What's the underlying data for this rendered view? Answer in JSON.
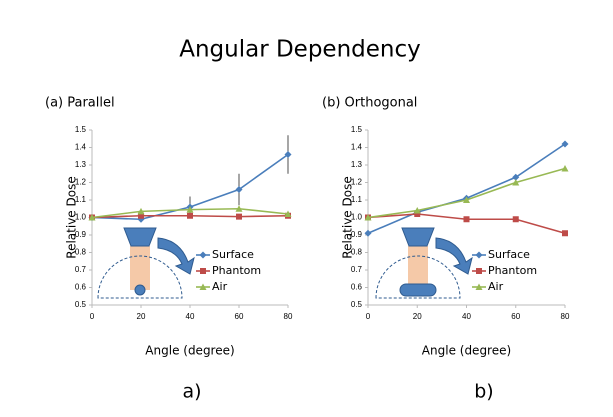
{
  "title": "Angular Dependency",
  "chart_data": [
    {
      "type": "line",
      "title": "(a) Parallel",
      "caption": "a)",
      "xlabel": "Angle (degree)",
      "ylabel": "Relative Dose",
      "x": [
        0,
        20,
        40,
        60,
        80
      ],
      "xlim": [
        0,
        80
      ],
      "xticks": [
        0,
        20,
        40,
        60,
        80
      ],
      "ylim": [
        0.5,
        1.5
      ],
      "yticks": [
        0.5,
        0.6,
        0.7,
        0.8,
        0.9,
        {
          "value": 1.0,
          "label": "1.0"
        },
        1.1,
        1.2,
        1.3,
        1.4,
        1.5
      ],
      "series": [
        {
          "name": "Surface",
          "color": "#4a7ebb",
          "marker": "diamond",
          "values": [
            1.0,
            0.99,
            1.06,
            1.16,
            1.36
          ],
          "errors": [
            0,
            0.01,
            0.06,
            0.09,
            0.11
          ]
        },
        {
          "name": "Phantom",
          "color": "#be4b48",
          "marker": "square",
          "values": [
            1.0,
            1.01,
            1.01,
            1.005,
            1.01
          ]
        },
        {
          "name": "Air",
          "color": "#98b954",
          "marker": "triangle",
          "values": [
            1.0,
            1.035,
            1.045,
            1.05,
            1.02
          ]
        }
      ]
    },
    {
      "type": "line",
      "title": "(b) Orthogonal",
      "caption": "b)",
      "xlabel": "Angle (degree)",
      "ylabel": "Relative Dose",
      "x": [
        0,
        20,
        40,
        60,
        80
      ],
      "xlim": [
        0,
        80
      ],
      "xticks": [
        0,
        20,
        40,
        60,
        80
      ],
      "ylim": [
        0.5,
        1.5
      ],
      "yticks": [
        0.5,
        0.6,
        0.7,
        0.8,
        0.9,
        {
          "value": 1.0,
          "label": "1.0"
        },
        1.1,
        1.2,
        1.3,
        1.4,
        1.5
      ],
      "series": [
        {
          "name": "Surface",
          "color": "#4a7ebb",
          "marker": "diamond",
          "values": [
            0.91,
            1.03,
            1.11,
            1.23,
            1.42
          ]
        },
        {
          "name": "Phantom",
          "color": "#be4b48",
          "marker": "square",
          "values": [
            1.0,
            1.02,
            0.99,
            0.99,
            0.91
          ]
        },
        {
          "name": "Air",
          "color": "#98b954",
          "marker": "triangle",
          "values": [
            1.0,
            1.04,
            1.1,
            1.2,
            1.28
          ]
        }
      ]
    }
  ]
}
